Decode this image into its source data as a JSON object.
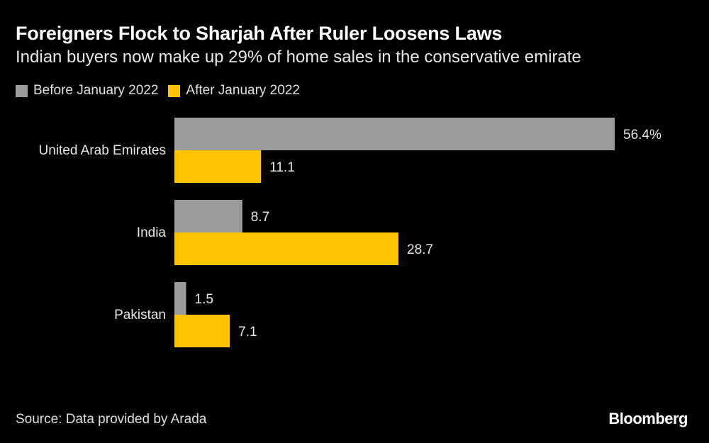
{
  "header": {
    "title": "Foreigners Flock to Sharjah After Ruler Loosens Laws",
    "subtitle": "Indian buyers now make up 29% of home sales in the conservative emirate"
  },
  "legend": [
    {
      "label": "Before January 2022",
      "color": "#9b9b9b"
    },
    {
      "label": "After January 2022",
      "color": "#ffc200"
    }
  ],
  "chart_data": {
    "type": "bar",
    "orientation": "horizontal",
    "categories": [
      "United Arab Emirates",
      "India",
      "Pakistan"
    ],
    "series": [
      {
        "name": "Before January 2022",
        "values": [
          56.4,
          8.7,
          1.5
        ],
        "labels": [
          "56.4%",
          "8.7",
          "1.5"
        ],
        "color": "#9b9b9b"
      },
      {
        "name": "After January 2022",
        "values": [
          11.1,
          28.7,
          7.1
        ],
        "labels": [
          "11.1",
          "28.7",
          "7.1"
        ],
        "color": "#ffc200"
      }
    ],
    "title": "Foreigners Flock to Sharjah After Ruler Loosens Laws",
    "subtitle": "Indian buyers now make up 29% of home sales in the conservative emirate",
    "xlabel": "",
    "ylabel": "",
    "xlim": [
      0,
      56.4
    ],
    "grid": false,
    "legend_position": "top-left"
  },
  "footer": {
    "source": "Source: Data provided by Arada",
    "logo": "Bloomberg"
  }
}
